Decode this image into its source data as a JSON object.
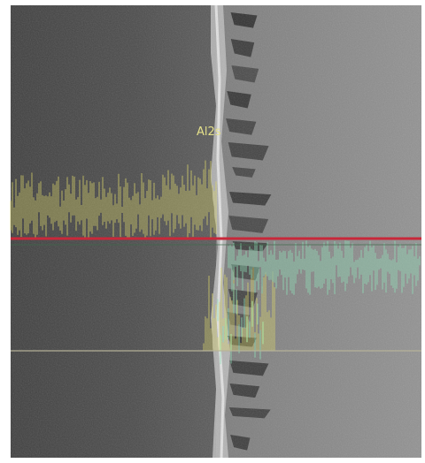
{
  "image": {
    "label": "Al2s",
    "colors": {
      "left_region": "#4a4a4a",
      "right_region": "#8a8a8a",
      "interface": "#d8d8d8",
      "particle": "#2a2a2a",
      "trace_yellow": "#d9d46a",
      "trace_green": "#8fe0b8",
      "marker_line": "#c8283a",
      "baseline": "#b8b49a"
    }
  }
}
